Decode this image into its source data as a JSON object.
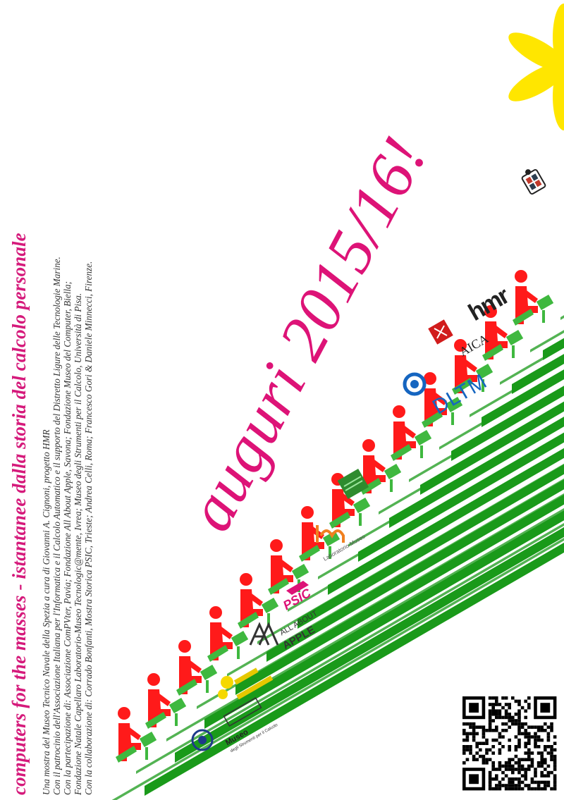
{
  "title": "computers for the masses - istantanee dalla storia del calcolo personale",
  "greeting": "auguri 2015/16!",
  "credits": [
    "Una mostra del Museo Tecnico Navale della Spezia a cura di Giovanni A. Cignoni, progetto HMR",
    "Con il patrocinio dell'Associazione Italiana per l'Informatica e il Calcolo Automatico e il supporto del Distretto Ligure delle Tecnologie Marine.",
    "Con la partecipazione di:  Associazione ComPVter, Pavia;  Fondazione All About Apple, Savona;  Fondazione Museo del Computer, Biella;",
    "Fondazione Natale Capellaro Laboratorio-Museo Tecnologic@mente, Ivrea;  Museo degli Strumenti per il Calcolo, Università di Pisa.",
    "Con la collaborazione di:  Corrado Bonfanti, Mostra Storica PSIC, Trieste;  Andrea Celli, Roma;  Francesco Gori & Daniele Minnecci, Firenze."
  ],
  "logos": {
    "hmr": "hmr",
    "aica": "AICA",
    "dltm": "DLTM",
    "tecnologicamente": "Laboratorio-Museo",
    "psic": "PSIC",
    "all_about_apple_top": "ALL ABOUT",
    "all_about_apple_bottom": "APPLE",
    "museo": "Museo",
    "museo_sub": "degli Strumenti per il Calcolo"
  },
  "colors": {
    "stair_green": "#1a9a1a",
    "figure_red": "#ff1a1a",
    "chair_green": "#3fb83f",
    "greeting_pink": "#dd1377",
    "title_pink": "#d51a7b",
    "asterisk_yellow": "#ffe600"
  },
  "icons": [
    "person-at-computer-icon",
    "asterisk-icon",
    "qr-code-icon",
    "stairs-graphic"
  ]
}
